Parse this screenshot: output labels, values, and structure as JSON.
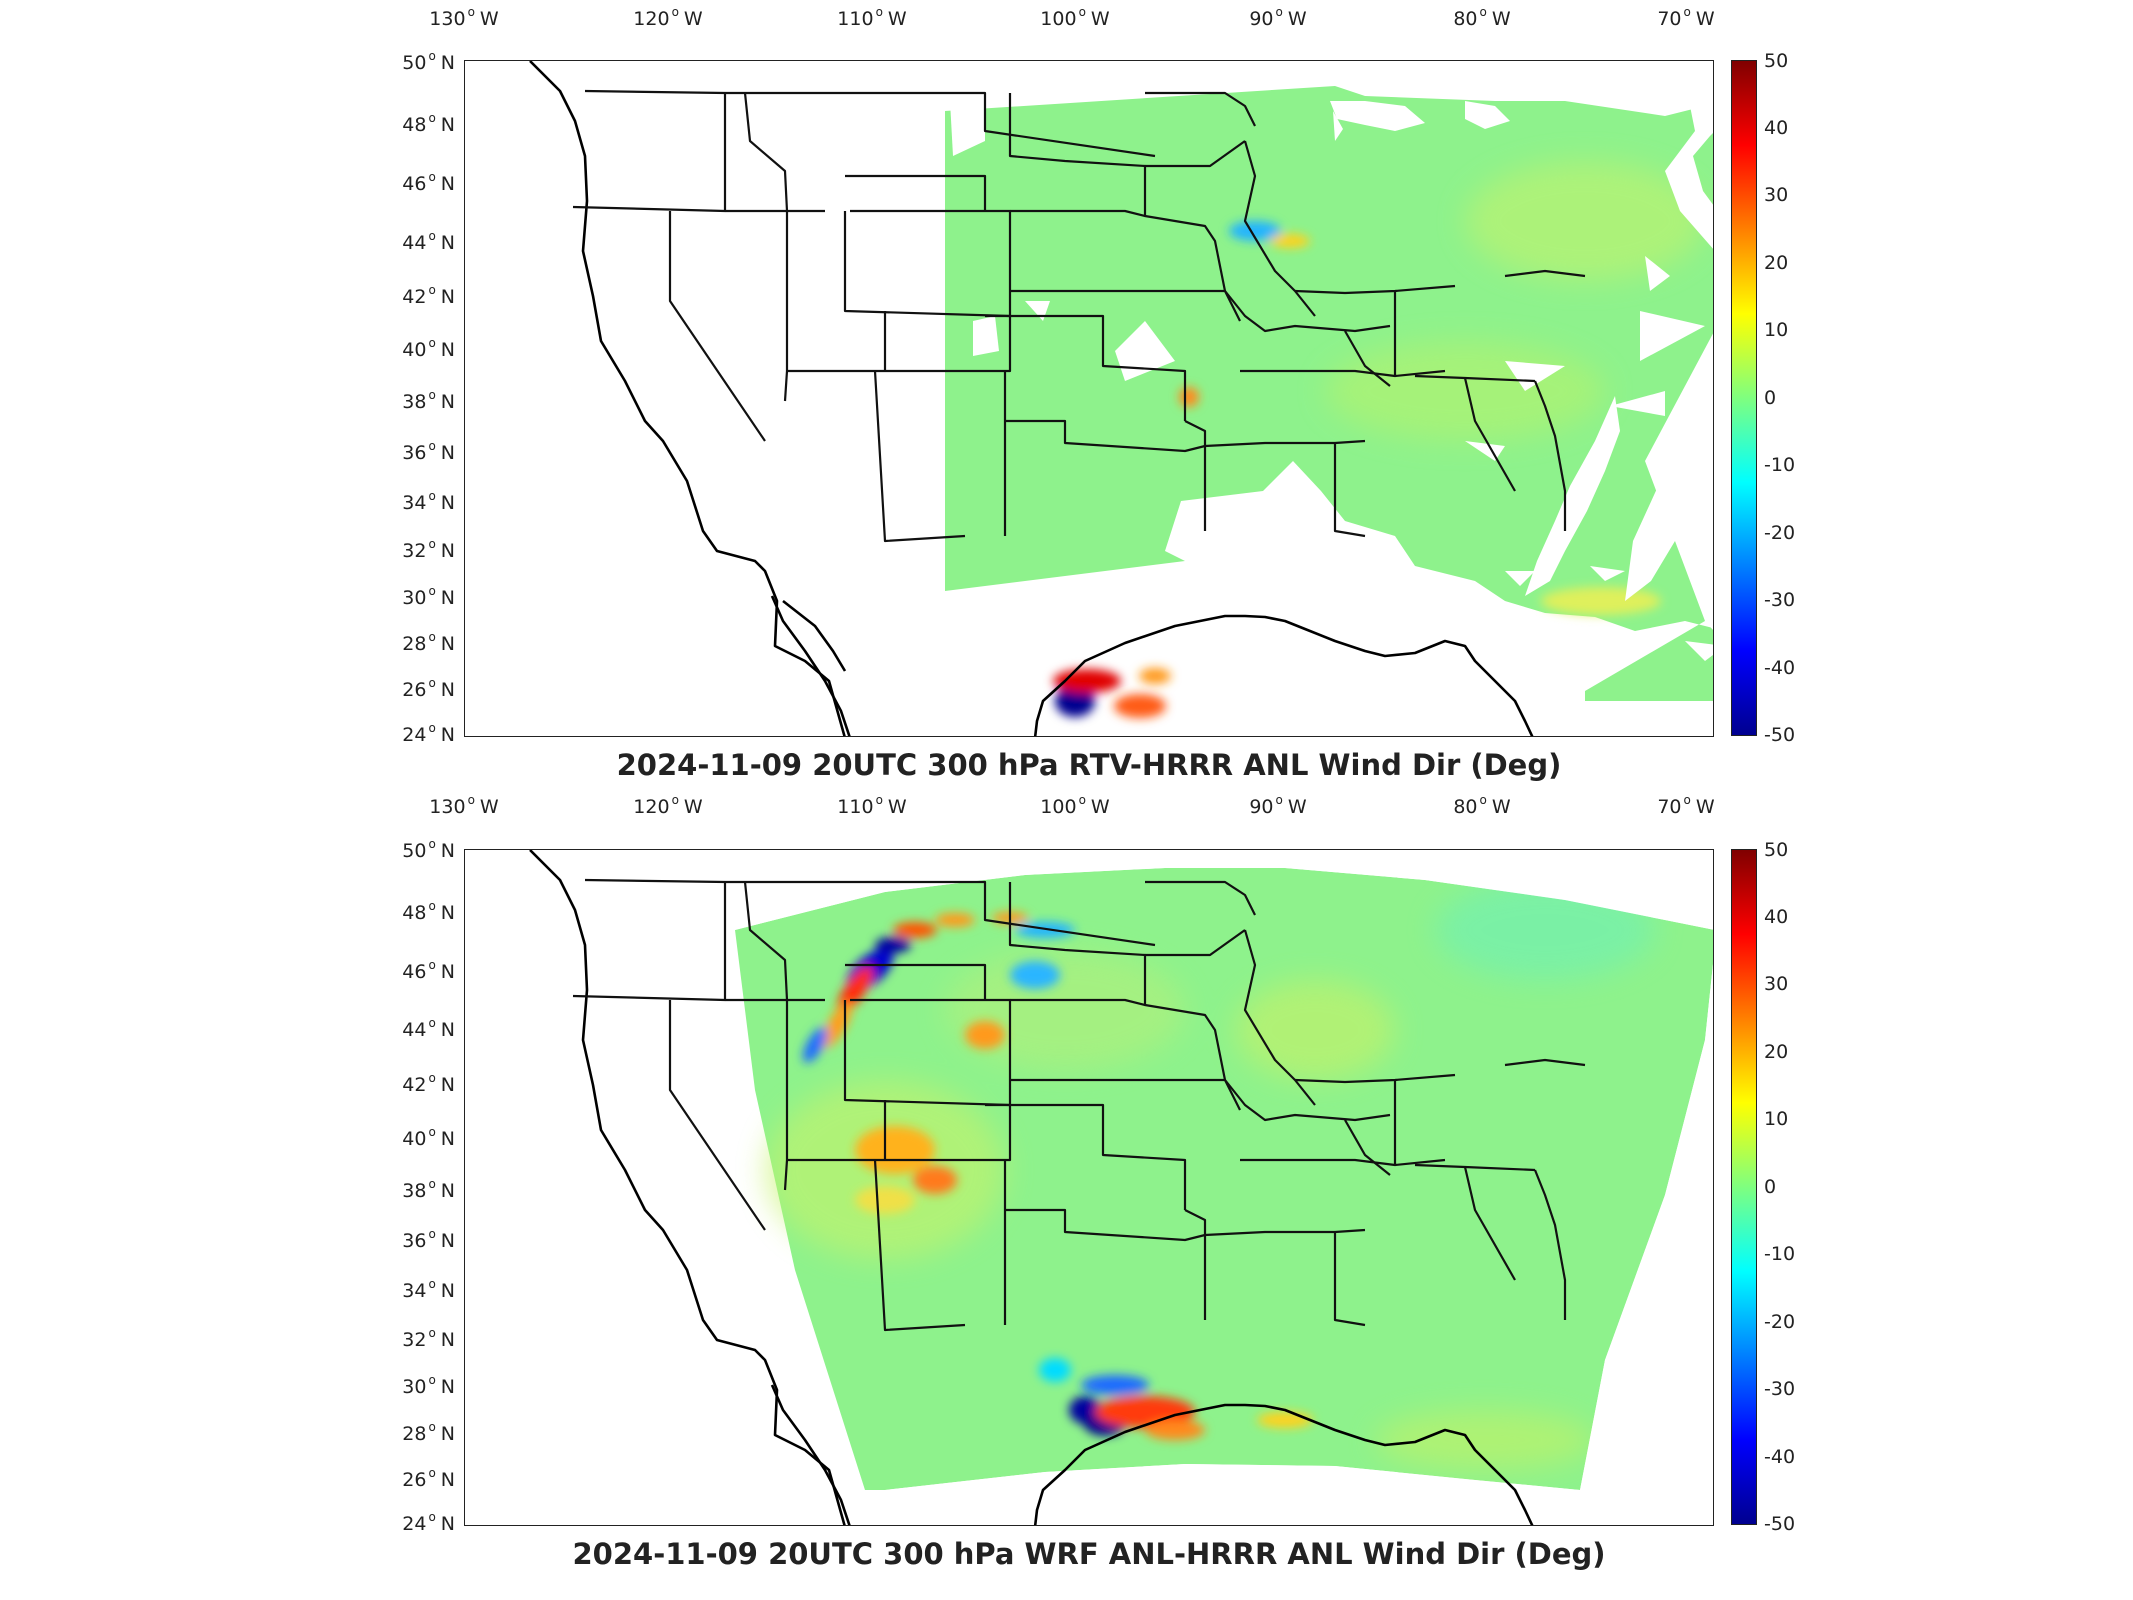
{
  "panels": [
    {
      "id": "top",
      "title": "2024-11-09 20UTC 300 hPa RTV-HRRR ANL Wind Dir (Deg)",
      "lon_labels": [
        "130",
        "120",
        "110",
        "100",
        "90",
        "80",
        "70"
      ],
      "lon_suffix": "W",
      "lat_labels": [
        "50",
        "48",
        "46",
        "44",
        "42",
        "40",
        "38",
        "36",
        "34",
        "32",
        "30",
        "28",
        "26",
        "24"
      ],
      "lat_suffix": "N",
      "colorbar_ticks": [
        "50",
        "40",
        "30",
        "20",
        "10",
        "0",
        "-10",
        "-20",
        "-30",
        "-40",
        "-50"
      ]
    },
    {
      "id": "bottom",
      "title": "2024-11-09 20UTC 300 hPa WRF ANL-HRRR ANL Wind Dir (Deg)",
      "lon_labels": [
        "130",
        "120",
        "110",
        "100",
        "90",
        "80",
        "70"
      ],
      "lon_suffix": "W",
      "lat_labels": [
        "50",
        "48",
        "46",
        "44",
        "42",
        "40",
        "38",
        "36",
        "34",
        "32",
        "30",
        "28",
        "26",
        "24"
      ],
      "lat_suffix": "N",
      "colorbar_ticks": [
        "50",
        "40",
        "30",
        "20",
        "10",
        "0",
        "-10",
        "-20",
        "-30",
        "-40",
        "-50"
      ]
    }
  ],
  "colormap": {
    "range": [
      -50,
      50
    ],
    "colors": [
      "#00008f",
      "#0000ff",
      "#00ffff",
      "#7fff7f",
      "#ffff00",
      "#ff0000",
      "#800000"
    ],
    "field_base": "#8ef28c"
  }
}
